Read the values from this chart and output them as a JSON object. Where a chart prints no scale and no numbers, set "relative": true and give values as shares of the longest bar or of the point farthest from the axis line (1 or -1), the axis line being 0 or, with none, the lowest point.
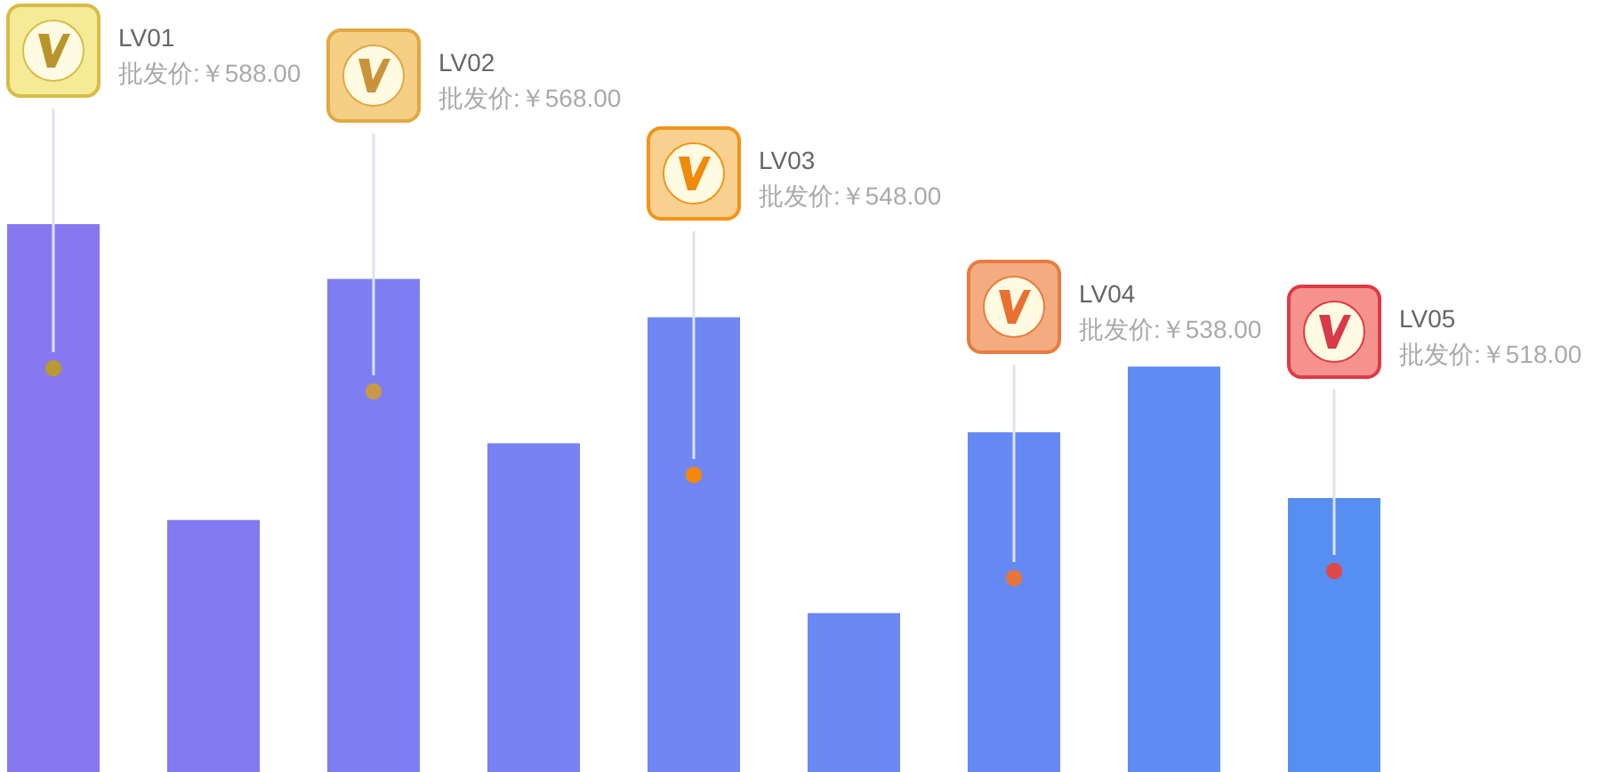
{
  "chart_data": {
    "type": "bar",
    "relative": true,
    "categories": [
      null,
      null,
      null,
      null,
      null,
      null,
      null,
      null,
      null
    ],
    "colors": [
      "#8778f0",
      "#827af1",
      "#7e7ef2",
      "#7882f2",
      "#7086f2",
      "#6c88f2",
      "#6489f2",
      "#5e8cf2",
      "#578ef2"
    ],
    "values": [
      1,
      0.46,
      0.9,
      0.6,
      0.83,
      0.29,
      0.62,
      0.74,
      0.5
    ],
    "annotations": [
      "LV01",
      "批发价:￥588.00",
      "LV02",
      "批发价:￥568.00",
      "LV03",
      "批发价:￥548.00",
      "LV04",
      "批发价:￥538.00",
      "LV05",
      "批发价:￥518.00"
    ]
  }
}
